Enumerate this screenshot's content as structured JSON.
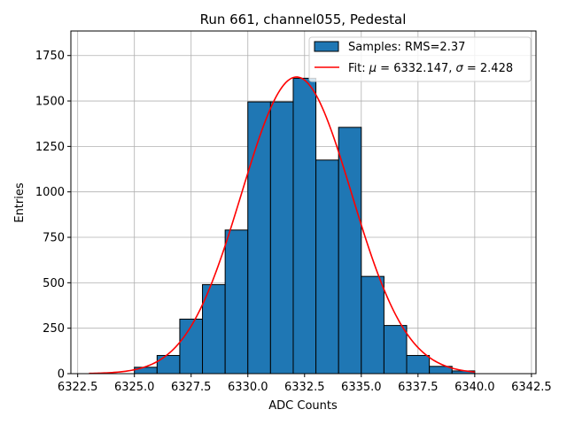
{
  "chart_data": {
    "type": "bar",
    "title": "Run 661, channel055, Pedestal",
    "xlabel": "ADC Counts",
    "ylabel": "Entries",
    "xlim": [
      6322.2,
      6342.7
    ],
    "ylim": [
      0,
      1885
    ],
    "grid": true,
    "x_ticks": [
      6322.5,
      6325.0,
      6327.5,
      6330.0,
      6332.5,
      6335.0,
      6337.5,
      6340.0,
      6342.5
    ],
    "x_tick_labels": [
      "6322.5",
      "6325.0",
      "6327.5",
      "6330.0",
      "6332.5",
      "6335.0",
      "6337.5",
      "6340.0",
      "6342.5"
    ],
    "y_ticks": [
      0,
      250,
      500,
      750,
      1000,
      1250,
      1500,
      1750
    ],
    "y_tick_labels": [
      "0",
      "250",
      "500",
      "750",
      "1000",
      "1250",
      "1500",
      "1750"
    ],
    "series": [
      {
        "name": "Samples: RMS=2.37",
        "kind": "histogram",
        "color": "#1f77b4",
        "edgecolor": "#000000",
        "bins": [
          {
            "left": 6325,
            "right": 6326,
            "count": 35
          },
          {
            "left": 6326,
            "right": 6327,
            "count": 100
          },
          {
            "left": 6327,
            "right": 6328,
            "count": 300
          },
          {
            "left": 6328,
            "right": 6329,
            "count": 490
          },
          {
            "left": 6329,
            "right": 6330,
            "count": 790
          },
          {
            "left": 6330,
            "right": 6331,
            "count": 1495
          },
          {
            "left": 6331,
            "right": 6332,
            "count": 1495
          },
          {
            "left": 6332,
            "right": 6333,
            "count": 1625
          },
          {
            "left": 6333,
            "right": 6334,
            "count": 1175
          },
          {
            "left": 6334,
            "right": 6335,
            "count": 1355
          },
          {
            "left": 6335,
            "right": 6336,
            "count": 535
          },
          {
            "left": 6336,
            "right": 6337,
            "count": 265
          },
          {
            "left": 6337,
            "right": 6338,
            "count": 100
          },
          {
            "left": 6338,
            "right": 6339,
            "count": 40
          },
          {
            "left": 6339,
            "right": 6340,
            "count": 15
          }
        ]
      },
      {
        "name": "Fit: μ = 6332.147, σ = 2.428",
        "kind": "gaussian",
        "color": "#ff0000",
        "mu": 6332.147,
        "sigma": 2.428,
        "amplitude": 1632,
        "x_range": [
          6323,
          6340
        ]
      }
    ],
    "legend": {
      "location": "top-right",
      "entries": [
        {
          "label": "Samples: RMS=2.37",
          "symbol": "patch"
        },
        {
          "label_prefix": "Fit: ",
          "mu_symbol": "μ",
          "mu_text": " = 6332.147, ",
          "sigma_symbol": "σ",
          "sigma_text": " = 2.428",
          "symbol": "line"
        }
      ]
    }
  }
}
